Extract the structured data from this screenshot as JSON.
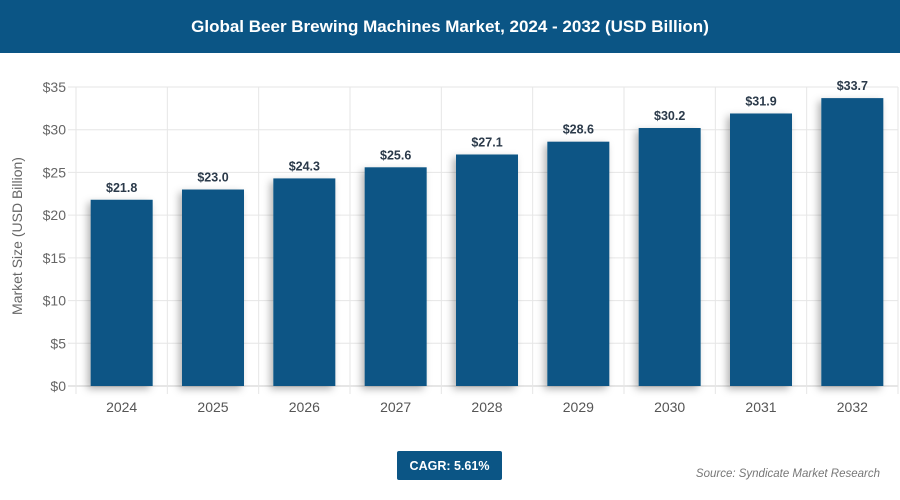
{
  "title": "Global Beer Brewing Machines Market, 2024 - 2032 (USD Billion)",
  "cagr": "CAGR: 5.61%",
  "source": "Source: Syndicate Market Research",
  "colors": {
    "bar": "#0b5585",
    "header": "#0b5585"
  },
  "chart_data": {
    "type": "bar",
    "title": "Global Beer Brewing Machines Market, 2024 - 2032 (USD Billion)",
    "xlabel": "",
    "ylabel": "Market Size (USD Billion)",
    "categories": [
      "2024",
      "2025",
      "2026",
      "2027",
      "2028",
      "2029",
      "2030",
      "2031",
      "2032"
    ],
    "values": [
      21.8,
      23.0,
      24.3,
      25.6,
      27.1,
      28.6,
      30.2,
      31.9,
      33.7
    ],
    "data_labels": [
      "$21.8",
      "$23.0",
      "$24.3",
      "$25.6",
      "$27.1",
      "$28.6",
      "$30.2",
      "$31.9",
      "$33.7"
    ],
    "ylim": [
      0,
      35
    ],
    "yticks": [
      0,
      5,
      10,
      15,
      20,
      25,
      30,
      35
    ],
    "ytick_labels": [
      "$0",
      "$5",
      "$10",
      "$15",
      "$20",
      "$25",
      "$30",
      "$35"
    ],
    "grid": true
  }
}
